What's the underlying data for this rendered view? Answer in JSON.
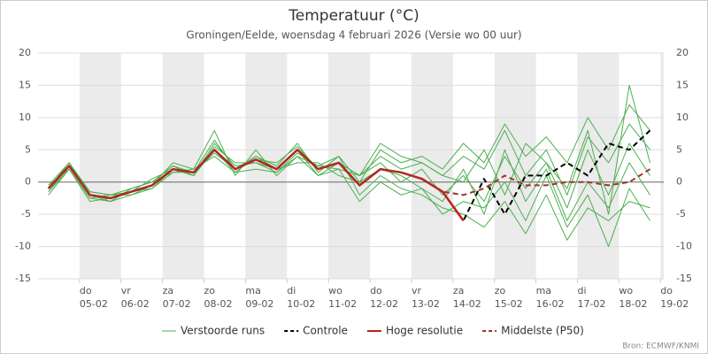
{
  "chart_data": {
    "type": "line",
    "title": "Temperatuur (°C)",
    "subtitle": "Groningen/Eelde, woensdag 4 februari 2026 (Versie wo 00 uur)",
    "source": "Bron: ECMWF/KNMI",
    "x": [
      -0.75,
      -0.25,
      0.25,
      0.75,
      1.25,
      1.75,
      2.25,
      2.75,
      3.25,
      3.75,
      4.25,
      4.75,
      5.25,
      5.75,
      6.25,
      6.75,
      7.25,
      7.75,
      8.25,
      8.75,
      9.25,
      9.75,
      10.25,
      10.75,
      11.25,
      11.75,
      12.25,
      12.75,
      13.25,
      13.75
    ],
    "xlim": [
      -1,
      14.08
    ],
    "xticks": [
      {
        "value": 0,
        "label": "05-02",
        "day": "do"
      },
      {
        "value": 1,
        "label": "06-02",
        "day": "vr"
      },
      {
        "value": 2,
        "label": "07-02",
        "day": "za"
      },
      {
        "value": 3,
        "label": "08-02",
        "day": "zo"
      },
      {
        "value": 4,
        "label": "09-02",
        "day": "ma"
      },
      {
        "value": 5,
        "label": "10-02",
        "day": "di"
      },
      {
        "value": 6,
        "label": "11-02",
        "day": "wo"
      },
      {
        "value": 7,
        "label": "12-02",
        "day": "do"
      },
      {
        "value": 8,
        "label": "13-02",
        "day": "vr"
      },
      {
        "value": 9,
        "label": "14-02",
        "day": "za"
      },
      {
        "value": 10,
        "label": "15-02",
        "day": "zo"
      },
      {
        "value": 11,
        "label": "16-02",
        "day": "ma"
      },
      {
        "value": 12,
        "label": "17-02",
        "day": "di"
      },
      {
        "value": 13,
        "label": "18-02",
        "day": "wo"
      },
      {
        "value": 14,
        "label": "19-02",
        "day": "do"
      }
    ],
    "ylim": [
      -15,
      20
    ],
    "yticks": [
      -15,
      -10,
      -5,
      0,
      5,
      10,
      15,
      20
    ],
    "grid": true,
    "ensemble": {
      "name": "Verstoorde runs",
      "color": "#4caf50",
      "members": [
        [
          -1.5,
          2,
          -2.5,
          -3,
          -1,
          0,
          2.5,
          1,
          6,
          2.5,
          3,
          1.5,
          4,
          2.5,
          2,
          1,
          4,
          2,
          3,
          1,
          4,
          2,
          8,
          1,
          5,
          -2,
          7,
          3,
          9,
          5
        ],
        [
          -0.5,
          3,
          -1.5,
          -2,
          -2,
          -1,
          1.5,
          2,
          4,
          1.5,
          4,
          2.5,
          6,
          1.5,
          4,
          -2,
          1,
          -1,
          -2,
          -4,
          -5,
          -7,
          -3,
          -8,
          -2,
          -9,
          -4,
          -6,
          -3,
          -4
        ],
        [
          -2,
          2,
          -3,
          -2.5,
          -1.5,
          0.5,
          2,
          1,
          5.5,
          3,
          3,
          2,
          3,
          3,
          1,
          0,
          5,
          3,
          4,
          2,
          6,
          3,
          9,
          4,
          7,
          3,
          10,
          5,
          12,
          8
        ],
        [
          -1,
          3,
          -2,
          -3,
          -2,
          -0.5,
          3,
          2,
          8,
          1,
          5,
          1,
          4,
          1,
          2,
          -3,
          0,
          -2,
          -1,
          -5,
          -3,
          -4,
          0,
          -6,
          1,
          -7,
          -2,
          -10,
          -1,
          -6
        ],
        [
          -1.5,
          2.5,
          -1.5,
          -2,
          -1,
          0,
          1.5,
          1.5,
          4.5,
          2,
          3.5,
          3,
          5.5,
          2,
          3,
          1,
          3,
          0,
          2,
          -2,
          1,
          -3,
          4,
          -1,
          3,
          -4,
          5,
          -2,
          6,
          1
        ],
        [
          -0.5,
          2,
          -2.5,
          -2,
          -1.5,
          -1,
          2,
          1,
          5,
          1.5,
          2,
          1.5,
          4.5,
          2.5,
          4,
          0,
          2,
          1,
          -1,
          -3,
          2,
          -5,
          5,
          -3,
          2,
          -6,
          0,
          -4,
          3,
          -2
        ],
        [
          -1,
          2.5,
          -2,
          -3,
          -1,
          0,
          2.5,
          1.5,
          6.5,
          2,
          4,
          2,
          5,
          1,
          3,
          1,
          6,
          4,
          3,
          1,
          0,
          5,
          -2,
          6,
          3,
          -1,
          8,
          -5,
          15,
          3
        ]
      ]
    },
    "series": [
      {
        "name": "Controle",
        "color": "#000000",
        "dash": "dashed",
        "values": [
          -1,
          2.5,
          -2,
          -2.5,
          -1.5,
          -0.5,
          2,
          1.5,
          5,
          2,
          3.5,
          2,
          5,
          2,
          3,
          -0.5,
          2,
          1.5,
          0.5,
          -1.5,
          -6,
          0.5,
          -5,
          1,
          1,
          3,
          1,
          6,
          5,
          8
        ]
      },
      {
        "name": "Hoge resolutie",
        "color": "#c0201a",
        "dash": "solid",
        "values": [
          -1,
          2.5,
          -2,
          -2.5,
          -1.5,
          -0.5,
          2,
          1.5,
          5,
          2,
          3.5,
          2,
          5,
          2,
          3,
          -0.5,
          2,
          1.5,
          0.5,
          -1.5,
          -6,
          null,
          null,
          null,
          null,
          null,
          null,
          null,
          null,
          null
        ]
      },
      {
        "name": "Middelste (P50)",
        "color": "#a0322a",
        "dash": "dashed",
        "values": [
          -1,
          2.5,
          -2,
          -2.5,
          -1.5,
          -0.5,
          2,
          1.5,
          5,
          2,
          3.5,
          2,
          5,
          2,
          3,
          -0.5,
          2,
          1.5,
          0.5,
          -1.5,
          -2,
          -1,
          1,
          -0.5,
          -0.5,
          0,
          0,
          -0.5,
          0,
          2
        ]
      }
    ]
  }
}
